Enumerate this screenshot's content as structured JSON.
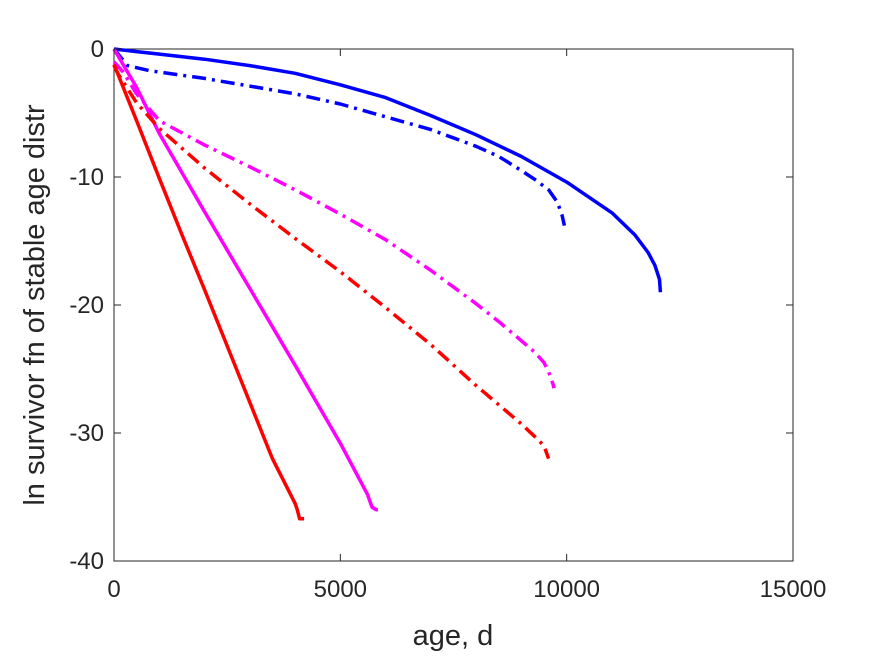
{
  "chart_data": {
    "type": "line",
    "title": "",
    "xlabel": "age, d",
    "ylabel": "ln survivor fn of stable age distr",
    "xlim": [
      0,
      15000
    ],
    "ylim": [
      -40,
      0
    ],
    "xticks": [
      "0",
      "5000",
      "10000",
      "15000"
    ],
    "yticks": [
      "0",
      "-10",
      "-20",
      "-30",
      "-40"
    ],
    "grid": false,
    "legend": "none",
    "series": [
      {
        "color": "#0000ff",
        "style": "solid",
        "x": [
          0,
          500,
          1000,
          2000,
          3000,
          4000,
          5000,
          6000,
          7000,
          8000,
          9000,
          10000,
          11000,
          11500,
          11800,
          11950,
          12050,
          12070
        ],
        "y": [
          0,
          -0.2,
          -0.4,
          -0.8,
          -1.3,
          -1.9,
          -2.8,
          -3.8,
          -5.2,
          -6.7,
          -8.4,
          -10.4,
          -12.8,
          -14.5,
          -15.9,
          -16.9,
          -18.0,
          -19.0
        ]
      },
      {
        "color": "#0000ff",
        "style": "dashdot",
        "x": [
          0,
          300,
          800,
          2000,
          3000,
          4000,
          5000,
          6000,
          7000,
          8000,
          8500,
          9000,
          9300,
          9600,
          9800,
          9900,
          9950
        ],
        "y": [
          0,
          -1.3,
          -1.7,
          -2.3,
          -2.9,
          -3.5,
          -4.3,
          -5.3,
          -6.3,
          -7.6,
          -8.4,
          -9.5,
          -10.2,
          -11.0,
          -12.0,
          -13.0,
          -13.8
        ]
      },
      {
        "color": "#ff00ff",
        "style": "solid",
        "x": [
          0,
          500,
          1000,
          2000,
          3000,
          4000,
          5000,
          5600,
          5700,
          5800,
          5830
        ],
        "y": [
          0,
          -3.0,
          -6.6,
          -12.7,
          -18.7,
          -24.7,
          -30.8,
          -34.8,
          -35.8,
          -36.0,
          -36.0
        ]
      },
      {
        "color": "#ff00ff",
        "style": "dashdot",
        "x": [
          0,
          200,
          500,
          1000,
          2000,
          3000,
          4000,
          5000,
          6000,
          7000,
          8000,
          8500,
          9000,
          9300,
          9500,
          9600,
          9700,
          9720
        ],
        "y": [
          -1.0,
          -1.8,
          -3.5,
          -5.6,
          -7.5,
          -9.2,
          -11.0,
          -12.9,
          -14.9,
          -17.3,
          -19.9,
          -21.3,
          -22.8,
          -23.7,
          -24.5,
          -25.2,
          -26.2,
          -26.5
        ]
      },
      {
        "color": "#ff0000",
        "style": "solid",
        "x": [
          0,
          500,
          1000,
          1500,
          2000,
          2500,
          3000,
          3500,
          4000,
          4050,
          4100,
          4200
        ],
        "y": [
          -1.2,
          -5.6,
          -10.1,
          -14.5,
          -18.8,
          -23.2,
          -27.6,
          -32.0,
          -35.5,
          -36.0,
          -36.7,
          -36.7
        ]
      },
      {
        "color": "#ff0000",
        "style": "dashdot",
        "x": [
          0,
          100,
          300,
          500,
          1000,
          2000,
          3000,
          4000,
          5000,
          6000,
          7000,
          8000,
          8500,
          9000,
          9300,
          9500,
          9600
        ],
        "y": [
          -1.3,
          -2.0,
          -3.1,
          -4.2,
          -6.2,
          -9.3,
          -12.1,
          -14.8,
          -17.4,
          -20.2,
          -23.1,
          -26.3,
          -27.8,
          -29.3,
          -30.3,
          -31.0,
          -32.0
        ]
      }
    ]
  }
}
